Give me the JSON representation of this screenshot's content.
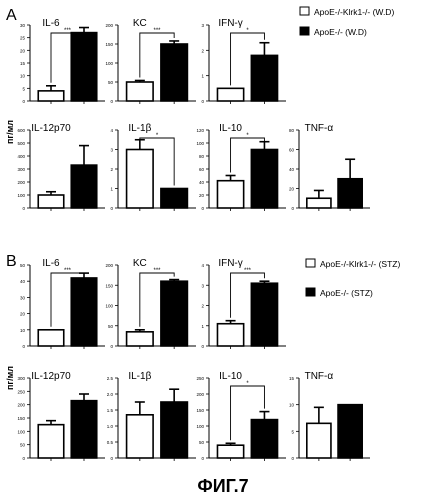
{
  "figure_caption": "ФИГ.7",
  "ylabel": "пг/мл",
  "colors": {
    "ko": "#ffffff",
    "wt": "#000000",
    "stroke": "#000000"
  },
  "chart_data": [
    {
      "type": "bar",
      "panel": "A",
      "legend": [
        "ApoE-/-Klrk1-/- (W.D)",
        "ApoE-/- (W.D)"
      ],
      "ylabel": "пг/мл",
      "subplots": [
        {
          "title": "IL-6",
          "categories": [
            "ApoE-/-Klrk1-/- (W.D)",
            "ApoE-/- (W.D)"
          ],
          "values": [
            4,
            27
          ],
          "errors": [
            2,
            2
          ],
          "ylim": [
            0,
            30
          ],
          "ytick_labels": [
            "0",
            "5",
            "10",
            "15",
            "20",
            "25",
            "30"
          ],
          "sig": "***"
        },
        {
          "title": "KC",
          "categories": [
            "ApoE-/-Klrk1-/- (W.D)",
            "ApoE-/- (W.D)"
          ],
          "values": [
            50,
            150
          ],
          "errors": [
            4,
            8
          ],
          "ylim": [
            0,
            200
          ],
          "ytick_labels": [
            "0",
            "50",
            "100",
            "150",
            "200"
          ],
          "sig": "***"
        },
        {
          "title": "IFN-γ",
          "categories": [
            "ApoE-/-Klrk1-/- (W.D)",
            "ApoE-/- (W.D)"
          ],
          "values": [
            0.5,
            1.8
          ],
          "errors": [
            0,
            0.5
          ],
          "ylim": [
            0,
            3
          ],
          "ytick_labels": [
            "0",
            "1",
            "2",
            "3"
          ],
          "sig": "*"
        },
        {
          "title": "IL-12p70",
          "categories": [
            "ApoE-/-Klrk1-/- (W.D)",
            "ApoE-/- (W.D)"
          ],
          "values": [
            100,
            330
          ],
          "errors": [
            25,
            150
          ],
          "ylim": [
            0,
            600
          ],
          "ytick_labels": [
            "0",
            "100",
            "200",
            "300",
            "400",
            "500",
            "600"
          ],
          "sig": ""
        },
        {
          "title": "IL-1β",
          "categories": [
            "ApoE-/-Klrk1-/- (W.D)",
            "ApoE-/- (W.D)"
          ],
          "values": [
            3,
            1
          ],
          "errors": [
            0.5,
            0
          ],
          "ylim": [
            0,
            4
          ],
          "ytick_labels": [
            "0",
            "1",
            "2",
            "3",
            "4"
          ],
          "sig": "*"
        },
        {
          "title": "IL-10",
          "categories": [
            "ApoE-/-Klrk1-/- (W.D)",
            "ApoE-/- (W.D)"
          ],
          "values": [
            42,
            90
          ],
          "errors": [
            8,
            12
          ],
          "ylim": [
            0,
            120
          ],
          "ytick_labels": [
            "0",
            "20",
            "40",
            "60",
            "80",
            "100",
            "120"
          ],
          "sig": "*"
        },
        {
          "title": "TNF-α",
          "categories": [
            "ApoE-/-Klrk1-/- (W.D)",
            "ApoE-/- (W.D)"
          ],
          "values": [
            10,
            30
          ],
          "errors": [
            8,
            20
          ],
          "ylim": [
            0,
            80
          ],
          "ytick_labels": [
            "0",
            "20",
            "40",
            "60",
            "80"
          ],
          "sig": ""
        }
      ]
    },
    {
      "type": "bar",
      "panel": "B",
      "legend": [
        "ApoE-/-Klrk1-/- (STZ)",
        "ApoE-/- (STZ)"
      ],
      "ylabel": "пг/мл",
      "subplots": [
        {
          "title": "IL-6",
          "categories": [
            "ApoE-/-Klrk1-/- (STZ)",
            "ApoE-/- (STZ)"
          ],
          "values": [
            10,
            42
          ],
          "errors": [
            0,
            3
          ],
          "ylim": [
            0,
            50
          ],
          "ytick_labels": [
            "0",
            "10",
            "20",
            "30",
            "40",
            "50"
          ],
          "sig": "***"
        },
        {
          "title": "KC",
          "categories": [
            "ApoE-/-Klrk1-/- (STZ)",
            "ApoE-/- (STZ)"
          ],
          "values": [
            35,
            160
          ],
          "errors": [
            5,
            4
          ],
          "ylim": [
            0,
            200
          ],
          "ytick_labels": [
            "0",
            "50",
            "100",
            "150",
            "200"
          ],
          "sig": "***"
        },
        {
          "title": "IFN-γ",
          "categories": [
            "ApoE-/-Klrk1-/- (STZ)",
            "ApoE-/- (STZ)"
          ],
          "values": [
            1.1,
            3.1
          ],
          "errors": [
            0.15,
            0.1
          ],
          "ylim": [
            0,
            4
          ],
          "ytick_labels": [
            "0",
            "1",
            "2",
            "3",
            "4"
          ],
          "sig": "***"
        },
        {
          "title": "IL-12p70",
          "categories": [
            "ApoE-/-Klrk1-/- (STZ)",
            "ApoE-/- (STZ)"
          ],
          "values": [
            125,
            215
          ],
          "errors": [
            15,
            25
          ],
          "ylim": [
            0,
            300
          ],
          "ytick_labels": [
            "0",
            "50",
            "100",
            "150",
            "200",
            "250",
            "300"
          ],
          "sig": ""
        },
        {
          "title": "IL-1β",
          "categories": [
            "ApoE-/-Klrk1-/- (STZ)",
            "ApoE-/- (STZ)"
          ],
          "values": [
            1.35,
            1.75
          ],
          "errors": [
            0.4,
            0.4
          ],
          "ylim": [
            0,
            2.5
          ],
          "ytick_labels": [
            "0",
            "0.5",
            "1.0",
            "1.5",
            "2.0",
            "2.5"
          ],
          "sig": ""
        },
        {
          "title": "IL-10",
          "categories": [
            "ApoE-/-Klrk1-/- (STZ)",
            "ApoE-/- (STZ)"
          ],
          "values": [
            40,
            120
          ],
          "errors": [
            6,
            25
          ],
          "ylim": [
            0,
            250
          ],
          "ytick_labels": [
            "0",
            "50",
            "100",
            "150",
            "200",
            "250"
          ],
          "sig": "*"
        },
        {
          "title": "TNF-α",
          "categories": [
            "ApoE-/-Klrk1-/- (STZ)",
            "ApoE-/- (STZ)"
          ],
          "values": [
            6.5,
            10
          ],
          "errors": [
            3,
            0
          ],
          "ylim": [
            0,
            15
          ],
          "ytick_labels": [
            "0",
            "5",
            "10",
            "15"
          ],
          "sig": ""
        }
      ]
    }
  ]
}
